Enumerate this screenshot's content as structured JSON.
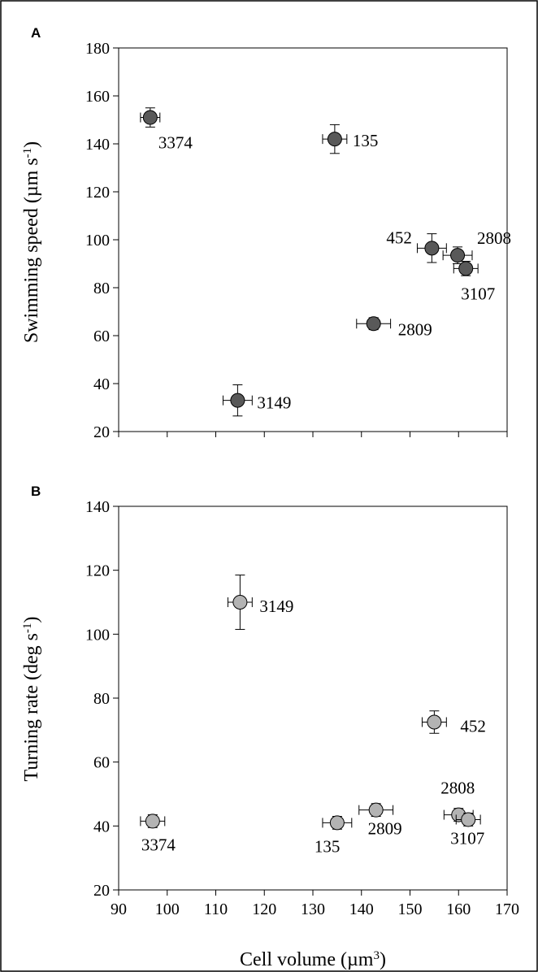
{
  "chart_data": [
    {
      "type": "scatter",
      "panel_label": "A",
      "title": "",
      "xlabel": "",
      "ylabel": "Swimming speed (µm s⁻¹)",
      "ylabel_parts": {
        "prefix": "Swimming speed (µm s",
        "sup": "-1",
        "suffix": ")"
      },
      "xlim": [
        90,
        170
      ],
      "ylim": [
        20,
        180
      ],
      "xticks": [
        90,
        100,
        110,
        120,
        130,
        140,
        150,
        160,
        170
      ],
      "yticks": [
        20,
        40,
        60,
        80,
        100,
        120,
        140,
        160,
        180
      ],
      "show_x_tick_labels": false,
      "grid": false,
      "marker_color": "#595959",
      "points": [
        {
          "label": "3374",
          "x": 96.5,
          "y": 151,
          "xerr": 2.0,
          "yerr": 4
        },
        {
          "label": "135",
          "x": 134.5,
          "y": 142,
          "xerr": 2.5,
          "yerr": 6
        },
        {
          "label": "452",
          "x": 154.5,
          "y": 96.5,
          "xerr": 3.0,
          "yerr": 6
        },
        {
          "label": "2808",
          "x": 159.8,
          "y": 93.5,
          "xerr": 3.0,
          "yerr": 3.5
        },
        {
          "label": "3107",
          "x": 161.5,
          "y": 88,
          "xerr": 2.5,
          "yerr": 3
        },
        {
          "label": "2809",
          "x": 142.5,
          "y": 65,
          "xerr": 3.5,
          "yerr": 2.5
        },
        {
          "label": "3149",
          "x": 114.5,
          "y": 33,
          "xerr": 3.0,
          "yerr": 6.5
        }
      ]
    },
    {
      "type": "scatter",
      "panel_label": "B",
      "title": "",
      "xlabel": "Cell volume (µm³)",
      "xlabel_parts": {
        "prefix": "Cell volume (µm",
        "sup": "3",
        "suffix": ")"
      },
      "ylabel": "Turning rate (deg s⁻¹)",
      "ylabel_parts": {
        "prefix": "Turning rate (deg s",
        "sup": "-1",
        "suffix": ")"
      },
      "xlim": [
        90,
        170
      ],
      "ylim": [
        20,
        140
      ],
      "xticks": [
        90,
        100,
        110,
        120,
        130,
        140,
        150,
        160,
        170
      ],
      "yticks": [
        20,
        40,
        60,
        80,
        100,
        120,
        140
      ],
      "show_x_tick_labels": true,
      "grid": false,
      "marker_color": "#b3b3b3",
      "points": [
        {
          "label": "3149",
          "x": 115,
          "y": 110,
          "xerr": 2.5,
          "yerr": 8.5
        },
        {
          "label": "452",
          "x": 155,
          "y": 72.5,
          "xerr": 2.5,
          "yerr": 3.5
        },
        {
          "label": "2808",
          "x": 160,
          "y": 43.5,
          "xerr": 3.0,
          "yerr": 2
        },
        {
          "label": "3107",
          "x": 162,
          "y": 42,
          "xerr": 2.5,
          "yerr": 2
        },
        {
          "label": "2809",
          "x": 143,
          "y": 45,
          "xerr": 3.5,
          "yerr": 2
        },
        {
          "label": "135",
          "x": 135,
          "y": 41,
          "xerr": 3.0,
          "yerr": 2
        },
        {
          "label": "3374",
          "x": 97,
          "y": 41.5,
          "xerr": 2.5,
          "yerr": 2
        }
      ]
    }
  ]
}
